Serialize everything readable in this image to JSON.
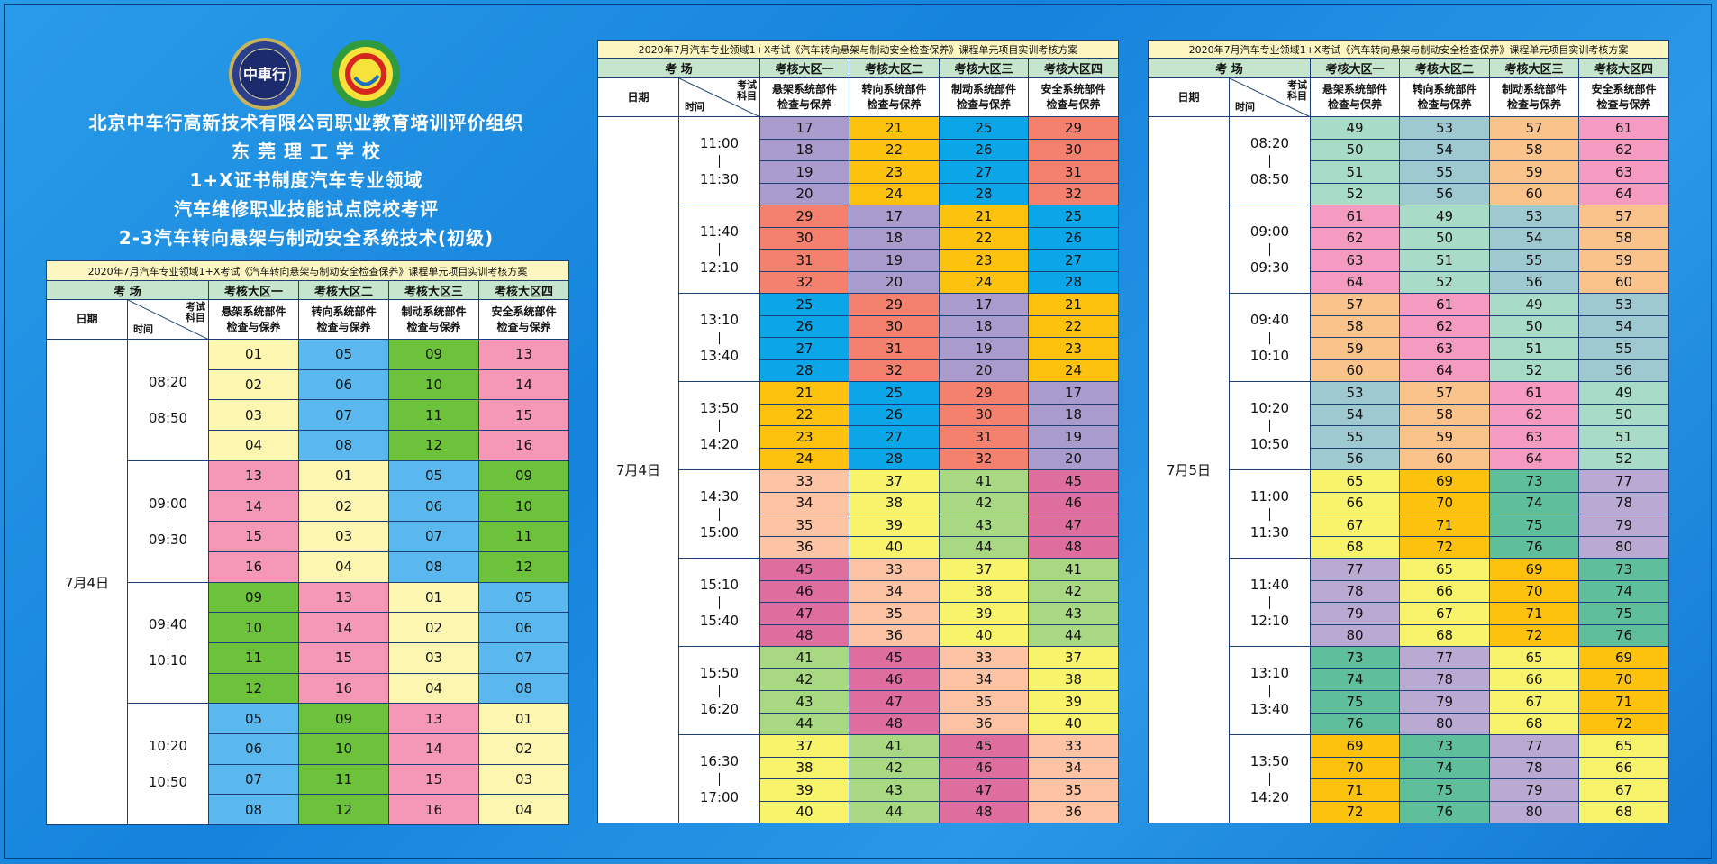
{
  "header": {
    "logo_text": "中車行",
    "title_lines": [
      "北京中车行高新技术有限公司职业教育培训评价组织",
      "东 莞 理 工 学 校",
      "1+X证书制度汽车专业领域",
      "汽车维修职业技能试点院校考评",
      "2-3汽车转向悬架与制动安全系统技术(初级)"
    ]
  },
  "tables": [
    {
      "caption": "2020年7月汽车专业领域1+X考试《汽车转向悬架与制动安全检查保养》课程单元项目实训考核方案",
      "area_label": "考 场",
      "date_label": "日期",
      "subject_label": [
        "考试",
        "科目"
      ],
      "time_label": "时间",
      "areas": [
        "考核大区一",
        "考核大区二",
        "考核大区三",
        "考核大区四"
      ],
      "subjects": [
        [
          "悬架系统部件",
          "检查与保养"
        ],
        [
          "转向系统部件",
          "检查与保养"
        ],
        [
          "制动系统部件",
          "检查与保养"
        ],
        [
          "安全系统部件",
          "检查与保养"
        ]
      ],
      "date": "7月4日",
      "slots": [
        {
          "start": "08:20",
          "end": "08:50",
          "columns": [
            {
              "color": "#fdf6b0",
              "values": [
                "01",
                "02",
                "03",
                "04"
              ]
            },
            {
              "color": "#5bb8ef",
              "values": [
                "05",
                "06",
                "07",
                "08"
              ]
            },
            {
              "color": "#6cc23a",
              "values": [
                "09",
                "10",
                "11",
                "12"
              ]
            },
            {
              "color": "#f598b8",
              "values": [
                "13",
                "14",
                "15",
                "16"
              ]
            }
          ]
        },
        {
          "start": "09:00",
          "end": "09:30",
          "columns": [
            {
              "color": "#f598b8",
              "values": [
                "13",
                "14",
                "15",
                "16"
              ]
            },
            {
              "color": "#fdf6b0",
              "values": [
                "01",
                "02",
                "03",
                "04"
              ]
            },
            {
              "color": "#5bb8ef",
              "values": [
                "05",
                "06",
                "07",
                "08"
              ]
            },
            {
              "color": "#6cc23a",
              "values": [
                "09",
                "10",
                "11",
                "12"
              ]
            }
          ]
        },
        {
          "start": "09:40",
          "end": "10:10",
          "columns": [
            {
              "color": "#6cc23a",
              "values": [
                "09",
                "10",
                "11",
                "12"
              ]
            },
            {
              "color": "#f598b8",
              "values": [
                "13",
                "14",
                "15",
                "16"
              ]
            },
            {
              "color": "#fdf6b0",
              "values": [
                "01",
                "02",
                "03",
                "04"
              ]
            },
            {
              "color": "#5bb8ef",
              "values": [
                "05",
                "06",
                "07",
                "08"
              ]
            }
          ]
        },
        {
          "start": "10:20",
          "end": "10:50",
          "columns": [
            {
              "color": "#5bb8ef",
              "values": [
                "05",
                "06",
                "07",
                "08"
              ]
            },
            {
              "color": "#6cc23a",
              "values": [
                "09",
                "10",
                "11",
                "12"
              ]
            },
            {
              "color": "#f598b8",
              "values": [
                "13",
                "14",
                "15",
                "16"
              ]
            },
            {
              "color": "#fdf6b0",
              "values": [
                "01",
                "02",
                "03",
                "04"
              ]
            }
          ]
        }
      ]
    },
    {
      "caption": "2020年7月汽车专业领域1+X考试《汽车转向悬架与制动安全检查保养》课程单元项目实训考核方案",
      "area_label": "考 场",
      "date_label": "日期",
      "subject_label": [
        "考试",
        "科目"
      ],
      "time_label": "时间",
      "areas": [
        "考核大区一",
        "考核大区二",
        "考核大区三",
        "考核大区四"
      ],
      "subjects": [
        [
          "悬架系统部件",
          "检查与保养"
        ],
        [
          "转向系统部件",
          "检查与保养"
        ],
        [
          "制动系统部件",
          "检查与保养"
        ],
        [
          "安全系统部件",
          "检查与保养"
        ]
      ],
      "date": "7月4日",
      "slots": [
        {
          "start": "11:00",
          "end": "11:30",
          "columns": [
            {
              "color": "#a99bcc",
              "values": [
                "17",
                "18",
                "19",
                "20"
              ]
            },
            {
              "color": "#fcc20e",
              "values": [
                "21",
                "22",
                "23",
                "24"
              ]
            },
            {
              "color": "#0aa6e8",
              "values": [
                "25",
                "26",
                "27",
                "28"
              ]
            },
            {
              "color": "#f4806e",
              "values": [
                "29",
                "30",
                "31",
                "32"
              ]
            }
          ]
        },
        {
          "start": "11:40",
          "end": "12:10",
          "columns": [
            {
              "color": "#f4806e",
              "values": [
                "29",
                "30",
                "31",
                "32"
              ]
            },
            {
              "color": "#a99bcc",
              "values": [
                "17",
                "18",
                "19",
                "20"
              ]
            },
            {
              "color": "#fcc20e",
              "values": [
                "21",
                "22",
                "23",
                "24"
              ]
            },
            {
              "color": "#0aa6e8",
              "values": [
                "25",
                "26",
                "27",
                "28"
              ]
            }
          ]
        },
        {
          "start": "13:10",
          "end": "13:40",
          "columns": [
            {
              "color": "#0aa6e8",
              "values": [
                "25",
                "26",
                "27",
                "28"
              ]
            },
            {
              "color": "#f4806e",
              "values": [
                "29",
                "30",
                "31",
                "32"
              ]
            },
            {
              "color": "#a99bcc",
              "values": [
                "17",
                "18",
                "19",
                "20"
              ]
            },
            {
              "color": "#fcc20e",
              "values": [
                "21",
                "22",
                "23",
                "24"
              ]
            }
          ]
        },
        {
          "start": "13:50",
          "end": "14:20",
          "columns": [
            {
              "color": "#fcc20e",
              "values": [
                "21",
                "22",
                "23",
                "24"
              ]
            },
            {
              "color": "#0aa6e8",
              "values": [
                "25",
                "26",
                "27",
                "28"
              ]
            },
            {
              "color": "#f4806e",
              "values": [
                "29",
                "30",
                "31",
                "32"
              ]
            },
            {
              "color": "#a99bcc",
              "values": [
                "17",
                "18",
                "19",
                "20"
              ]
            }
          ]
        },
        {
          "start": "14:30",
          "end": "15:00",
          "columns": [
            {
              "color": "#fcc4a4",
              "values": [
                "33",
                "34",
                "35",
                "36"
              ]
            },
            {
              "color": "#f7f36a",
              "values": [
                "37",
                "38",
                "39",
                "40"
              ]
            },
            {
              "color": "#a8d882",
              "values": [
                "41",
                "42",
                "43",
                "44"
              ]
            },
            {
              "color": "#dd6e9e",
              "values": [
                "45",
                "46",
                "47",
                "48"
              ]
            }
          ]
        },
        {
          "start": "15:10",
          "end": "15:40",
          "columns": [
            {
              "color": "#dd6e9e",
              "values": [
                "45",
                "46",
                "47",
                "48"
              ]
            },
            {
              "color": "#fcc4a4",
              "values": [
                "33",
                "34",
                "35",
                "36"
              ]
            },
            {
              "color": "#f7f36a",
              "values": [
                "37",
                "38",
                "39",
                "40"
              ]
            },
            {
              "color": "#a8d882",
              "values": [
                "41",
                "42",
                "43",
                "44"
              ]
            }
          ]
        },
        {
          "start": "15:50",
          "end": "16:20",
          "columns": [
            {
              "color": "#a8d882",
              "values": [
                "41",
                "42",
                "43",
                "44"
              ]
            },
            {
              "color": "#dd6e9e",
              "values": [
                "45",
                "46",
                "47",
                "48"
              ]
            },
            {
              "color": "#fcc4a4",
              "values": [
                "33",
                "34",
                "35",
                "36"
              ]
            },
            {
              "color": "#f7f36a",
              "values": [
                "37",
                "38",
                "39",
                "40"
              ]
            }
          ]
        },
        {
          "start": "16:30",
          "end": "17:00",
          "columns": [
            {
              "color": "#f7f36a",
              "values": [
                "37",
                "38",
                "39",
                "40"
              ]
            },
            {
              "color": "#a8d882",
              "values": [
                "41",
                "42",
                "43",
                "44"
              ]
            },
            {
              "color": "#dd6e9e",
              "values": [
                "45",
                "46",
                "47",
                "48"
              ]
            },
            {
              "color": "#fcc4a4",
              "values": [
                "33",
                "34",
                "35",
                "36"
              ]
            }
          ]
        }
      ]
    },
    {
      "caption": "2020年7月汽车专业领域1+X考试《汽车转向悬架与制动安全检查保养》课程单元项目实训考核方案",
      "area_label": "考 场",
      "date_label": "日期",
      "subject_label": [
        "考试",
        "科目"
      ],
      "time_label": "时间",
      "areas": [
        "考核大区一",
        "考核大区二",
        "考核大区三",
        "考核大区四"
      ],
      "subjects": [
        [
          "悬架系统部件",
          "检查与保养"
        ],
        [
          "转向系统部件",
          "检查与保养"
        ],
        [
          "制动系统部件",
          "检查与保养"
        ],
        [
          "安全系统部件",
          "检查与保养"
        ]
      ],
      "date": "7月5日",
      "slots": [
        {
          "start": "08:20",
          "end": "08:50",
          "columns": [
            {
              "color": "#a9dcc8",
              "values": [
                "49",
                "50",
                "51",
                "52"
              ]
            },
            {
              "color": "#9fc9d1",
              "values": [
                "53",
                "54",
                "55",
                "56"
              ]
            },
            {
              "color": "#fac38c",
              "values": [
                "57",
                "58",
                "59",
                "60"
              ]
            },
            {
              "color": "#f59ac0",
              "values": [
                "61",
                "62",
                "63",
                "64"
              ]
            }
          ]
        },
        {
          "start": "09:00",
          "end": "09:30",
          "columns": [
            {
              "color": "#f59ac0",
              "values": [
                "61",
                "62",
                "63",
                "64"
              ]
            },
            {
              "color": "#a9dcc8",
              "values": [
                "49",
                "50",
                "51",
                "52"
              ]
            },
            {
              "color": "#9fc9d1",
              "values": [
                "53",
                "54",
                "55",
                "56"
              ]
            },
            {
              "color": "#fac38c",
              "values": [
                "57",
                "58",
                "59",
                "60"
              ]
            }
          ]
        },
        {
          "start": "09:40",
          "end": "10:10",
          "columns": [
            {
              "color": "#fac38c",
              "values": [
                "57",
                "58",
                "59",
                "60"
              ]
            },
            {
              "color": "#f59ac0",
              "values": [
                "61",
                "62",
                "63",
                "64"
              ]
            },
            {
              "color": "#a9dcc8",
              "values": [
                "49",
                "50",
                "51",
                "52"
              ]
            },
            {
              "color": "#9fc9d1",
              "values": [
                "53",
                "54",
                "55",
                "56"
              ]
            }
          ]
        },
        {
          "start": "10:20",
          "end": "10:50",
          "columns": [
            {
              "color": "#9fc9d1",
              "values": [
                "53",
                "54",
                "55",
                "56"
              ]
            },
            {
              "color": "#fac38c",
              "values": [
                "57",
                "58",
                "59",
                "60"
              ]
            },
            {
              "color": "#f59ac0",
              "values": [
                "61",
                "62",
                "63",
                "64"
              ]
            },
            {
              "color": "#a9dcc8",
              "values": [
                "49",
                "50",
                "51",
                "52"
              ]
            }
          ]
        },
        {
          "start": "11:00",
          "end": "11:30",
          "columns": [
            {
              "color": "#f7f36a",
              "values": [
                "65",
                "66",
                "67",
                "68"
              ]
            },
            {
              "color": "#fcc20e",
              "values": [
                "69",
                "70",
                "71",
                "72"
              ]
            },
            {
              "color": "#5fbf9a",
              "values": [
                "73",
                "74",
                "75",
                "76"
              ]
            },
            {
              "color": "#b9a9d3",
              "values": [
                "77",
                "78",
                "79",
                "80"
              ]
            }
          ]
        },
        {
          "start": "11:40",
          "end": "12:10",
          "columns": [
            {
              "color": "#b9a9d3",
              "values": [
                "77",
                "78",
                "79",
                "80"
              ]
            },
            {
              "color": "#f7f36a",
              "values": [
                "65",
                "66",
                "67",
                "68"
              ]
            },
            {
              "color": "#fcc20e",
              "values": [
                "69",
                "70",
                "71",
                "72"
              ]
            },
            {
              "color": "#5fbf9a",
              "values": [
                "73",
                "74",
                "75",
                "76"
              ]
            }
          ]
        },
        {
          "start": "13:10",
          "end": "13:40",
          "columns": [
            {
              "color": "#5fbf9a",
              "values": [
                "73",
                "74",
                "75",
                "76"
              ]
            },
            {
              "color": "#b9a9d3",
              "values": [
                "77",
                "78",
                "79",
                "80"
              ]
            },
            {
              "color": "#f7f36a",
              "values": [
                "65",
                "66",
                "67",
                "68"
              ]
            },
            {
              "color": "#fcc20e",
              "values": [
                "69",
                "70",
                "71",
                "72"
              ]
            }
          ]
        },
        {
          "start": "13:50",
          "end": "14:20",
          "columns": [
            {
              "color": "#fcc20e",
              "values": [
                "69",
                "70",
                "71",
                "72"
              ]
            },
            {
              "color": "#5fbf9a",
              "values": [
                "73",
                "74",
                "75",
                "76"
              ]
            },
            {
              "color": "#b9a9d3",
              "values": [
                "77",
                "78",
                "79",
                "80"
              ]
            },
            {
              "color": "#f7f36a",
              "values": [
                "65",
                "66",
                "67",
                "68"
              ]
            }
          ]
        }
      ]
    }
  ]
}
